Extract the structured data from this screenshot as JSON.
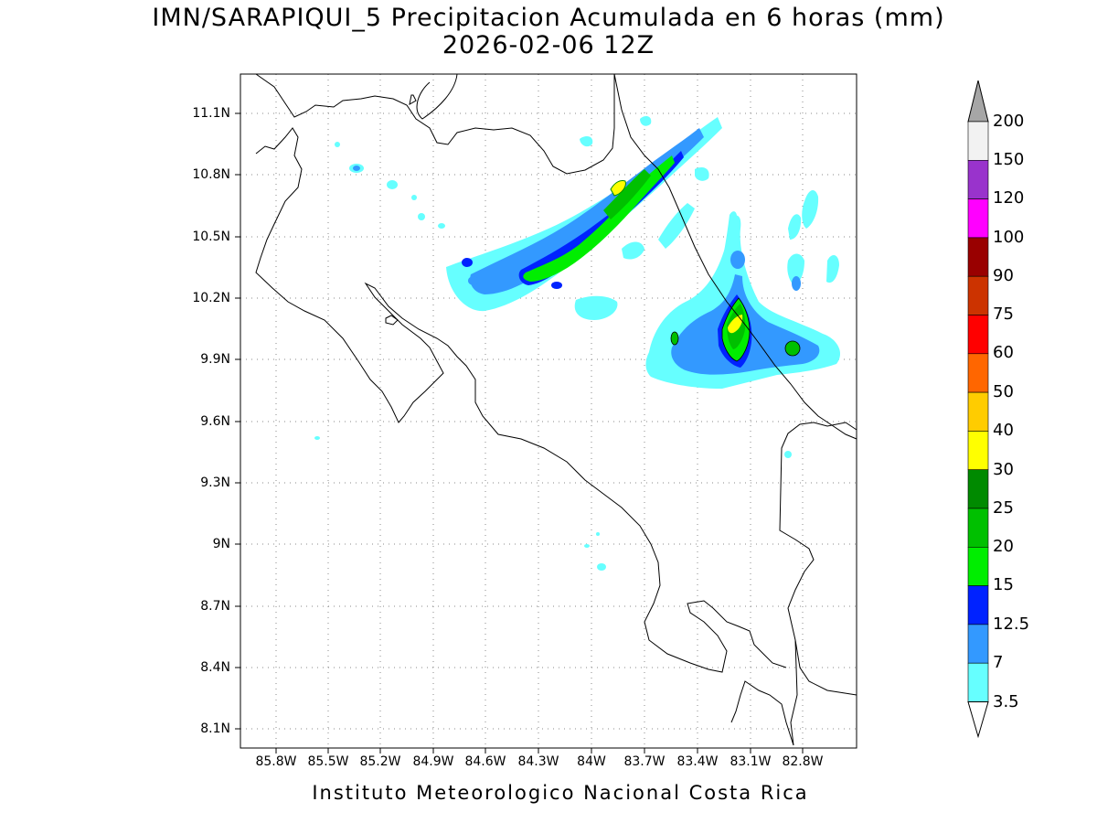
{
  "title": {
    "line1": "IMN/SARAPIQUI_5 Precipitacion Acumulada en 6 horas (mm)",
    "line2": "2026-02-06 12Z"
  },
  "footer": "Instituto Meteorologico Nacional Costa Rica",
  "map": {
    "extent": {
      "lon_min": -86.05,
      "lon_max": -82.55,
      "lat_min": 8.0,
      "lat_max": 11.3
    },
    "lat_ticks": [
      "11.1N",
      "10.8N",
      "10.5N",
      "10.2N",
      "9.9N",
      "9.6N",
      "9.3N",
      "9N",
      "8.7N",
      "8.4N",
      "8.1N"
    ],
    "lon_ticks": [
      "85.8W",
      "85.5W",
      "85.2W",
      "84.9W",
      "84.6W",
      "84.3W",
      "84W",
      "83.7W",
      "83.4W",
      "83.1W",
      "82.8W"
    ],
    "grid": true
  },
  "colorbar": {
    "levels": [
      "3.5",
      "7",
      "12.5",
      "15",
      "20",
      "25",
      "30",
      "40",
      "50",
      "60",
      "75",
      "90",
      "100",
      "120",
      "150",
      "200"
    ],
    "colors": [
      "#66ffff",
      "#3399ff",
      "#0022ff",
      "#00ee00",
      "#00c000",
      "#008a00",
      "#ffff00",
      "#ffcc00",
      "#ff6600",
      "#ff0000",
      "#cc3300",
      "#990000",
      "#ff00ff",
      "#9933cc",
      "#f2f2f2",
      "#a6a6a6"
    ]
  }
}
